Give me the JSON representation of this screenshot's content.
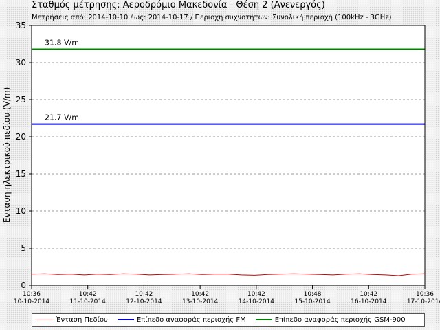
{
  "title": "Σταθμός μέτρησης: Αεροδρόμιο Μακεδονία - Θέση 2 (Ανενεργός)",
  "subtitle": "Μετρήσεις από: 2014-10-10 έως: 2014-10-17 / Περιοχή συχνοτήτων: Συνολική περιοχή (100kHz - 3GHz)",
  "colors": {
    "field": "#cc0000",
    "fm": "#0000cc",
    "gsm": "#008000",
    "grid": "#999999"
  },
  "chart_data": {
    "type": "line",
    "ylabel": "Ένταση ηλεκτρικού πεδίου (V/m)",
    "xlabel": "",
    "ylim": [
      0,
      35
    ],
    "yticks": [
      0,
      5,
      10,
      15,
      20,
      25,
      30,
      35
    ],
    "grid": "horizontal dashed",
    "legend_position": "bottom",
    "x_ticks": [
      {
        "time": "10:36",
        "date": "10-10-2014"
      },
      {
        "time": "10:42",
        "date": "11-10-2014"
      },
      {
        "time": "10:42",
        "date": "12-10-2014"
      },
      {
        "time": "10:42",
        "date": "13-10-2014"
      },
      {
        "time": "10:42",
        "date": "14-10-2014"
      },
      {
        "time": "10:48",
        "date": "15-10-2014"
      },
      {
        "time": "10:42",
        "date": "16-10-2014"
      },
      {
        "time": "10:36",
        "date": "17-10-2014"
      }
    ],
    "series": [
      {
        "name": "Ένταση Πεδίου",
        "color": "#cc0000",
        "values": [
          1.5,
          1.55,
          1.45,
          1.5,
          1.4,
          1.5,
          1.45,
          1.55,
          1.5,
          1.4,
          1.45,
          1.5,
          1.55,
          1.45,
          1.5,
          1.5,
          1.4,
          1.35,
          1.45,
          1.5,
          1.55,
          1.5,
          1.45,
          1.4,
          1.5,
          1.55,
          1.45,
          1.4,
          1.3,
          1.5,
          1.55
        ]
      },
      {
        "name": "Επίπεδο αναφοράς περιοχής FM",
        "color": "#0000cc",
        "constant": 21.7,
        "label": "21.7 V/m"
      },
      {
        "name": "Επίπεδο αναφοράς περιοχής GSM-900",
        "color": "#008000",
        "constant": 31.8,
        "label": "31.8 V/m"
      }
    ]
  }
}
